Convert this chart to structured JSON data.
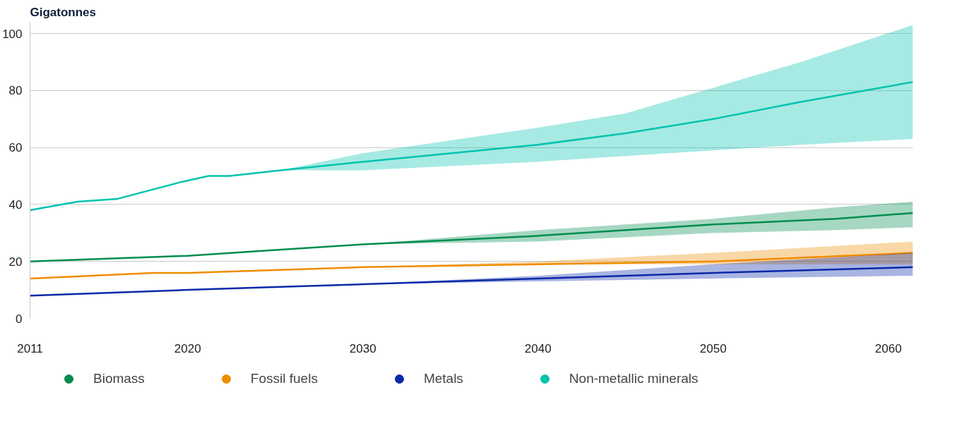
{
  "chart_data": {
    "type": "line",
    "ylabel": "Gigatonnes",
    "xlim": [
      2011,
      2061.4
    ],
    "xticks": [
      2011,
      2020,
      2030,
      2040,
      2050,
      2060
    ],
    "ylim": [
      0,
      104
    ],
    "yticks": [
      0,
      20,
      40,
      60,
      80,
      100
    ],
    "grid": "y",
    "legend": "bottom",
    "marker": "none",
    "line_style": "solid",
    "series": [
      {
        "name": "Biomass",
        "color": "#008c4f",
        "x": [
          2011,
          2020,
          2025,
          2030,
          2040,
          2050,
          2057,
          2061.4
        ],
        "values": [
          20,
          22,
          24,
          26,
          29,
          33,
          35,
          37
        ],
        "lower": [
          null,
          null,
          null,
          26,
          27,
          30,
          31,
          32
        ],
        "upper": [
          null,
          null,
          null,
          26,
          31,
          35,
          39,
          41
        ]
      },
      {
        "name": "Fossil fuels",
        "color": "#f08c00",
        "x": [
          2011,
          2018,
          2020,
          2030,
          2040,
          2050,
          2061.4
        ],
        "values": [
          14,
          16,
          16,
          18,
          19,
          20,
          23
        ],
        "lower": [
          null,
          null,
          null,
          18,
          19,
          19,
          19
        ],
        "upper": [
          null,
          null,
          null,
          18,
          20,
          23,
          27
        ]
      },
      {
        "name": "Metals",
        "color": "#0a28a8",
        "x": [
          2011,
          2020,
          2025,
          2030,
          2040,
          2050,
          2061.4
        ],
        "values": [
          8,
          10,
          11,
          12,
          14,
          16,
          18
        ],
        "lower": [
          null,
          null,
          null,
          12,
          13,
          14,
          15
        ],
        "upper": [
          null,
          null,
          null,
          12,
          15,
          19,
          23
        ]
      },
      {
        "name": "Non-metallic minerals",
        "color": "#00c3b0",
        "x": [
          2011,
          2013.7,
          2016,
          2019.7,
          2021.2,
          2022.4,
          2025.3,
          2030,
          2040,
          2045,
          2050,
          2055,
          2061.4
        ],
        "values": [
          38,
          41,
          42,
          48,
          50,
          50,
          52,
          55,
          61,
          65,
          70,
          76,
          83
        ],
        "lower": [
          null,
          null,
          null,
          null,
          null,
          null,
          52,
          52,
          55,
          57,
          59,
          61,
          63
        ],
        "upper": [
          null,
          null,
          null,
          null,
          null,
          null,
          52,
          58,
          67,
          72,
          81,
          90,
          103
        ]
      }
    ]
  }
}
